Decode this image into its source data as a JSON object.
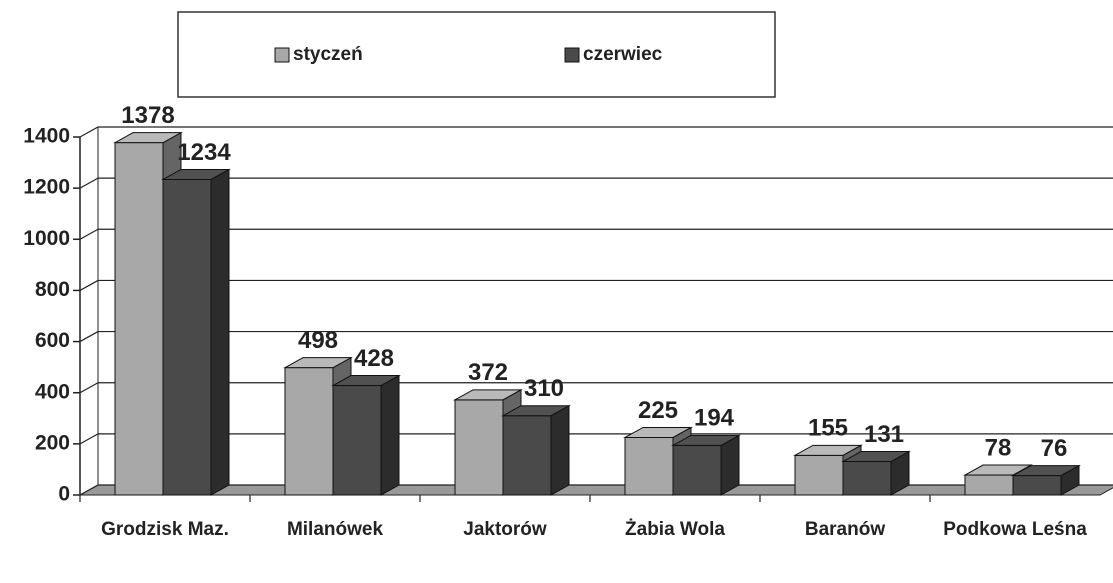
{
  "chart_data": {
    "type": "bar3d",
    "categories": [
      "Grodzisk Maz.",
      "Milanówek",
      "Jaktorów",
      "Żabia Wola",
      "Baranów",
      "Podkowa Leśna"
    ],
    "series": [
      {
        "name": "styczeń",
        "color": "#a8a8a8",
        "values": [
          1378,
          498,
          372,
          225,
          155,
          78
        ]
      },
      {
        "name": "czerwiec",
        "color": "#4a4a4a",
        "values": [
          1234,
          428,
          310,
          194,
          131,
          76
        ]
      }
    ],
    "ylim": [
      0,
      1400
    ],
    "yticks": [
      0,
      200,
      400,
      600,
      800,
      1000,
      1200,
      1400
    ],
    "grid": true,
    "legend": "top"
  }
}
